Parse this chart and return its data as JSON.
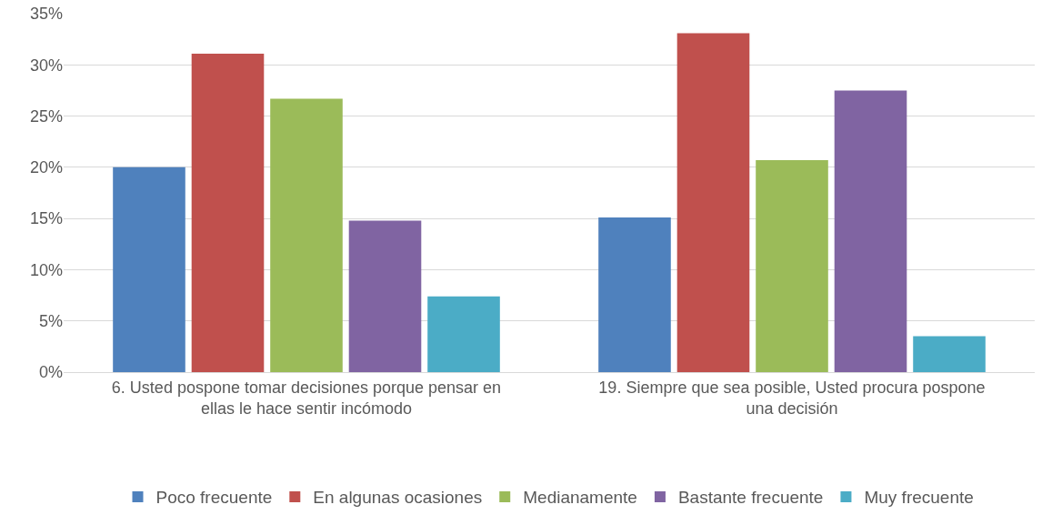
{
  "chart_data": {
    "type": "bar",
    "categories": [
      "6. Usted pospone tomar decisiones porque pensar en ellas le hace sentir incómodo",
      "19. Siempre que sea posible, Usted procura pospone una decisión"
    ],
    "series": [
      {
        "name": "Poco frecuente",
        "color": "#4f81bd",
        "values": [
          20.0,
          15.1
        ]
      },
      {
        "name": "En algunas ocasiones",
        "color": "#c0504d",
        "values": [
          31.1,
          33.1
        ]
      },
      {
        "name": "Medianamente",
        "color": "#9bbb59",
        "values": [
          26.7,
          20.7
        ]
      },
      {
        "name": "Bastante frecuente",
        "color": "#8064a2",
        "values": [
          14.8,
          27.5
        ]
      },
      {
        "name": "Muy frecuente",
        "color": "#4bacc6",
        "values": [
          7.4,
          3.5
        ]
      }
    ],
    "ylim": [
      0,
      35
    ],
    "yticks": [
      {
        "value": 0,
        "label": "0%"
      },
      {
        "value": 5,
        "label": "5%"
      },
      {
        "value": 10,
        "label": "10%"
      },
      {
        "value": 15,
        "label": "15%"
      },
      {
        "value": 20,
        "label": "20%"
      },
      {
        "value": 25,
        "label": "25%"
      },
      {
        "value": 30,
        "label": "30%"
      },
      {
        "value": 35,
        "label": "35%"
      }
    ],
    "grid": "y",
    "legend": "bottom"
  }
}
